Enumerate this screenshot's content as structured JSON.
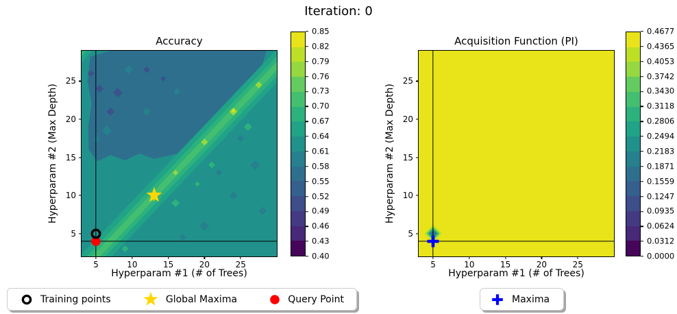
{
  "figure": {
    "title": "Iteration: 0"
  },
  "chart_data": [
    {
      "type": "contour",
      "title": "Accuracy",
      "xlabel": "Hyperparam #1 (# of Trees)",
      "ylabel": "Hyperparam #2 (Max Depth)",
      "xlim": [
        3,
        30
      ],
      "ylim": [
        2,
        29
      ],
      "xticks": [
        5,
        10,
        15,
        20,
        25
      ],
      "yticks": [
        5,
        10,
        15,
        20,
        25
      ],
      "colormap": "viridis",
      "value_range": [
        0.4,
        0.85
      ],
      "crosshair": {
        "x": 5,
        "y": 4
      },
      "markers": {
        "training_points": {
          "x": 5,
          "y": 5,
          "color": "#000000",
          "shape": "circle-outline"
        },
        "global_maxima": {
          "x": 13,
          "y": 10,
          "color": "#ffd700",
          "shape": "star"
        },
        "query_point": {
          "x": 5,
          "y": 4,
          "color": "#ff0000",
          "shape": "circle"
        }
      },
      "pattern_note": "teal field ~0.64, bluer region ~0.55 upper-left, bright green diagonal ridge y=x-3 peaking toward 0.85",
      "colorbar": {
        "ticks": [
          "0.85",
          "0.82",
          "0.79",
          "0.76",
          "0.73",
          "0.70",
          "0.67",
          "0.64",
          "0.61",
          "0.58",
          "0.55",
          "0.52",
          "0.49",
          "0.46",
          "0.43",
          "0.40"
        ],
        "colors": [
          "#e8e419",
          "#bddf26",
          "#95d840",
          "#63cb5f",
          "#44bf70",
          "#2db27d",
          "#20a386",
          "#21918c",
          "#26808e",
          "#2e6f8e",
          "#355f8d",
          "#3d4e8a",
          "#443a83",
          "#482878",
          "#450559"
        ]
      }
    },
    {
      "type": "contour",
      "title": "Acquisition Function (PI)",
      "xlabel": "Hyperparam #1 (# of Trees)",
      "ylabel": "Hyperparam #2 (Max Depth)",
      "xlim": [
        3,
        30
      ],
      "ylim": [
        2,
        29
      ],
      "xticks": [
        5,
        10,
        15,
        20,
        25
      ],
      "yticks": [
        5,
        10,
        15,
        20,
        25
      ],
      "colormap": "viridis",
      "value_range": [
        0.0,
        0.4677
      ],
      "crosshair": {
        "x": 5,
        "y": 4
      },
      "markers": {
        "maxima": {
          "x": 5,
          "y": 4,
          "color": "#0000ff",
          "shape": "plus"
        }
      },
      "pattern_note": "uniform yellow at maximum PI with small dark dip diamond at training point (5,5)",
      "colorbar": {
        "ticks": [
          "0.4677",
          "0.4365",
          "0.4053",
          "0.3742",
          "0.3430",
          "0.3118",
          "0.2806",
          "0.2494",
          "0.2183",
          "0.1871",
          "0.1559",
          "0.1247",
          "0.0935",
          "0.0624",
          "0.0312",
          "0.0000"
        ],
        "colors": [
          "#e8e419",
          "#bddf26",
          "#95d840",
          "#63cb5f",
          "#44bf70",
          "#2db27d",
          "#20a386",
          "#21918c",
          "#26808e",
          "#2e6f8e",
          "#355f8d",
          "#3d4e8a",
          "#443a83",
          "#482878",
          "#450559"
        ]
      }
    }
  ],
  "legend_left": {
    "items": [
      {
        "label": "Training points",
        "marker": "circle-outline"
      },
      {
        "label": "Global Maxima",
        "marker": "star"
      },
      {
        "label": "Query Point",
        "marker": "circle"
      }
    ]
  },
  "legend_right": {
    "items": [
      {
        "label": "Maxima",
        "marker": "plus"
      }
    ]
  }
}
